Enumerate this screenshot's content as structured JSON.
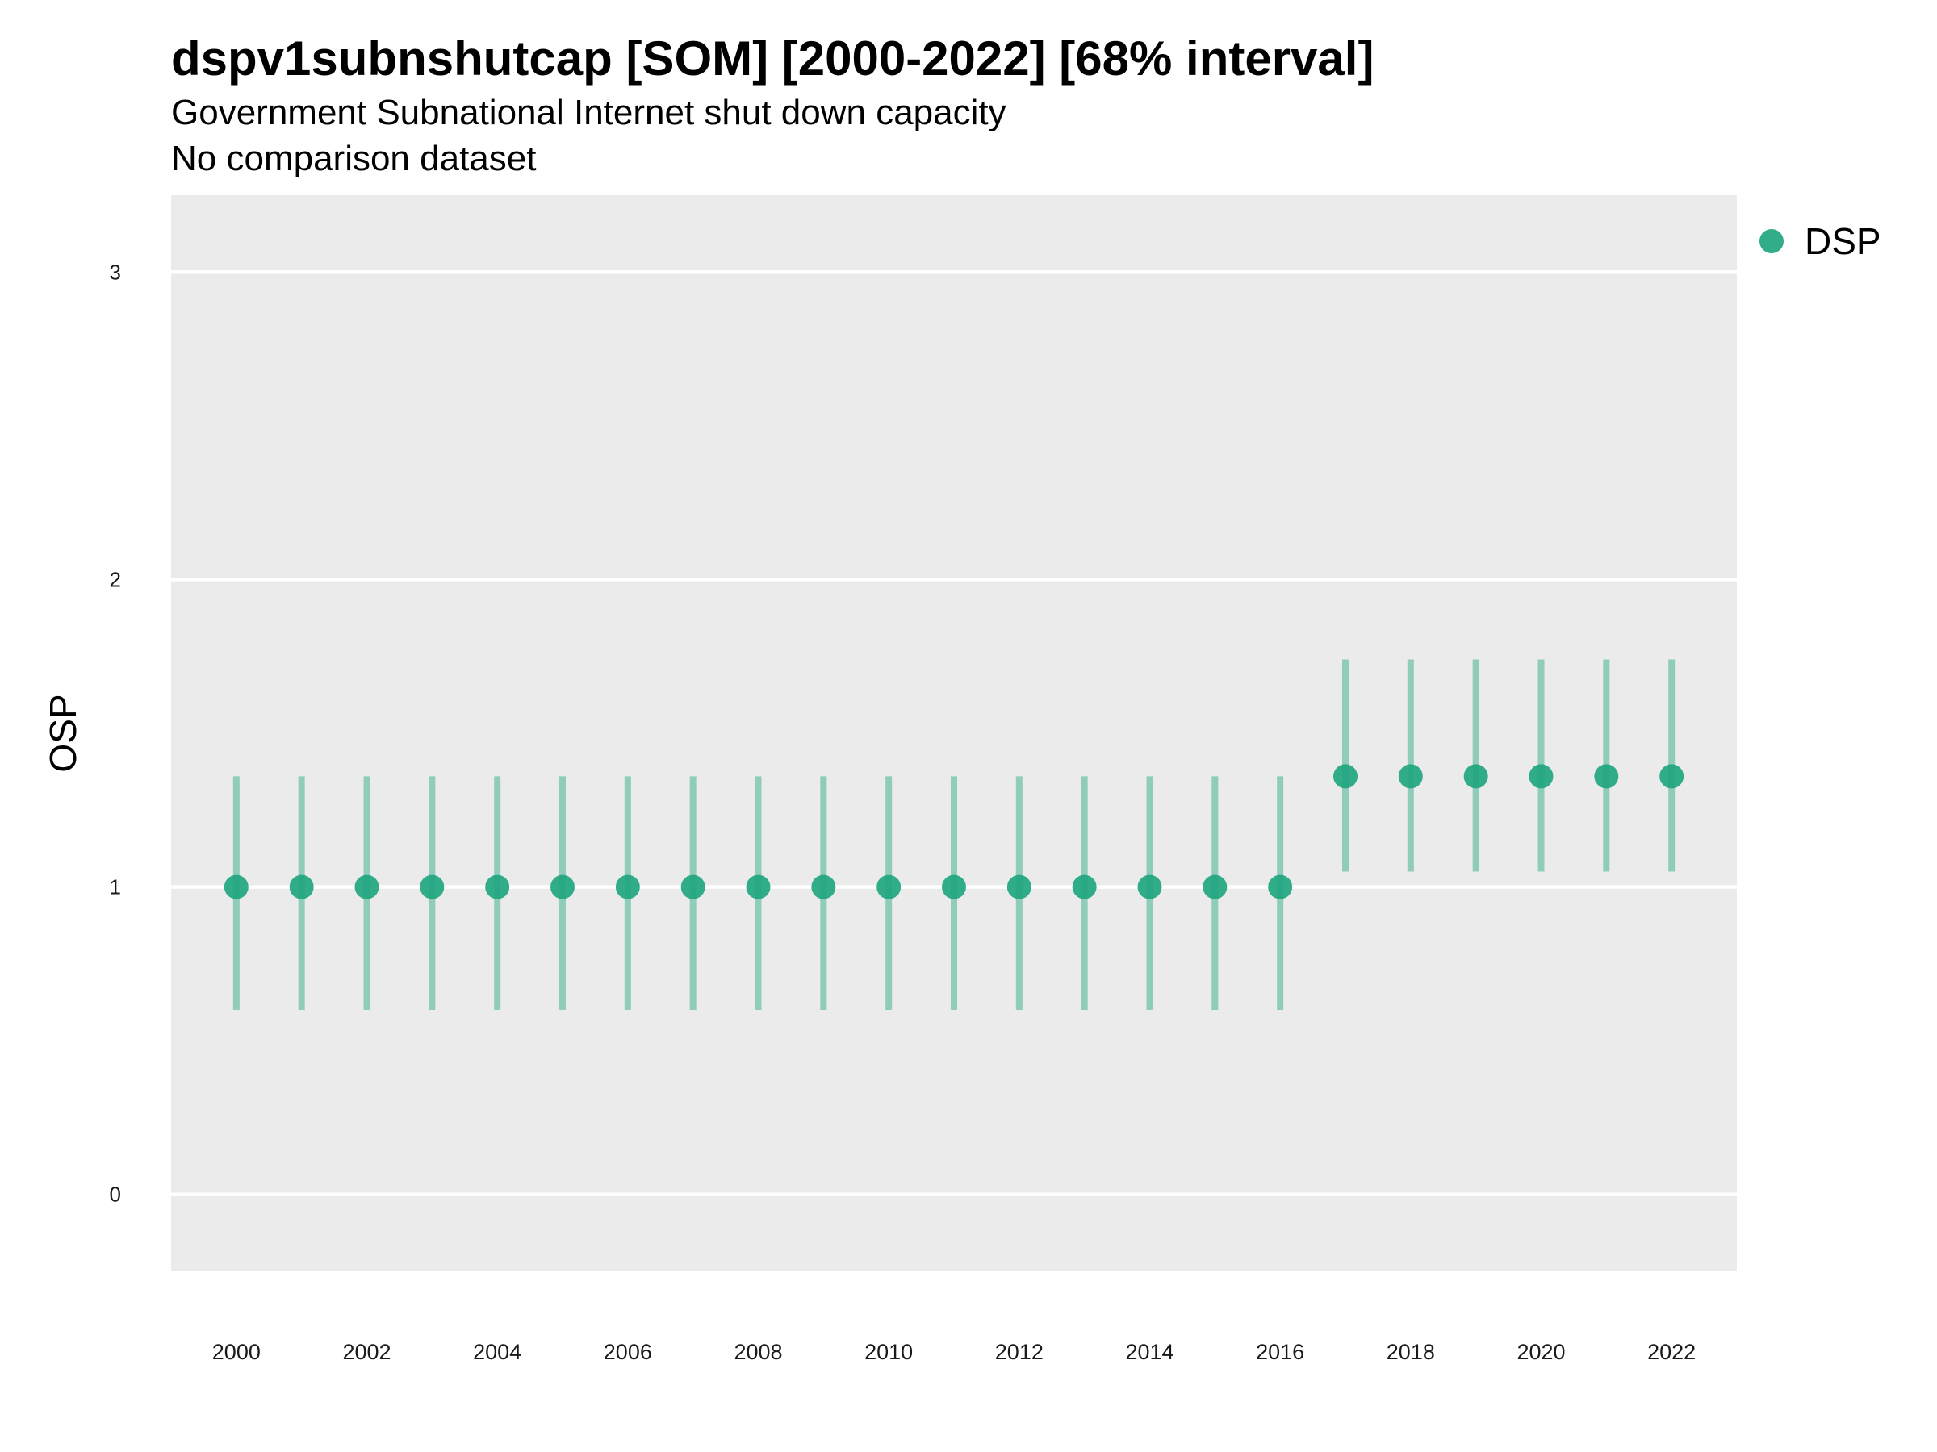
{
  "chart_data": {
    "type": "scatter",
    "title": "dspv1subnshutcap [SOM] [2000-2022] [68% interval]",
    "subtitle": "Government Subnational Internet shut down capacity",
    "caption": "No comparison dataset",
    "ylabel": "OSP",
    "xlabel": "",
    "xlim": [
      1999,
      2023
    ],
    "ylim": [
      -0.25,
      3.25
    ],
    "x_ticks": [
      2000,
      2002,
      2004,
      2006,
      2008,
      2010,
      2012,
      2014,
      2016,
      2018,
      2020,
      2022
    ],
    "y_ticks": [
      0,
      1,
      2,
      3
    ],
    "grid": true,
    "legend_position": "top-right",
    "series": [
      {
        "name": "DSP",
        "color": "#1fa67f",
        "x": [
          2000,
          2001,
          2002,
          2003,
          2004,
          2005,
          2006,
          2007,
          2008,
          2009,
          2010,
          2011,
          2012,
          2013,
          2014,
          2015,
          2016,
          2017,
          2018,
          2019,
          2020,
          2021,
          2022
        ],
        "y": [
          1,
          1,
          1,
          1,
          1,
          1,
          1,
          1,
          1,
          1,
          1,
          1,
          1,
          1,
          1,
          1,
          1,
          1.36,
          1.36,
          1.36,
          1.36,
          1.36,
          1.36
        ],
        "lower": [
          0.6,
          0.6,
          0.6,
          0.6,
          0.6,
          0.6,
          0.6,
          0.6,
          0.6,
          0.6,
          0.6,
          0.6,
          0.6,
          0.6,
          0.6,
          0.6,
          0.6,
          1.05,
          1.05,
          1.05,
          1.05,
          1.05,
          1.05
        ],
        "upper": [
          1.36,
          1.36,
          1.36,
          1.36,
          1.36,
          1.36,
          1.36,
          1.36,
          1.36,
          1.36,
          1.36,
          1.36,
          1.36,
          1.36,
          1.36,
          1.36,
          1.36,
          1.74,
          1.74,
          1.74,
          1.74,
          1.74,
          1.74
        ]
      }
    ]
  }
}
